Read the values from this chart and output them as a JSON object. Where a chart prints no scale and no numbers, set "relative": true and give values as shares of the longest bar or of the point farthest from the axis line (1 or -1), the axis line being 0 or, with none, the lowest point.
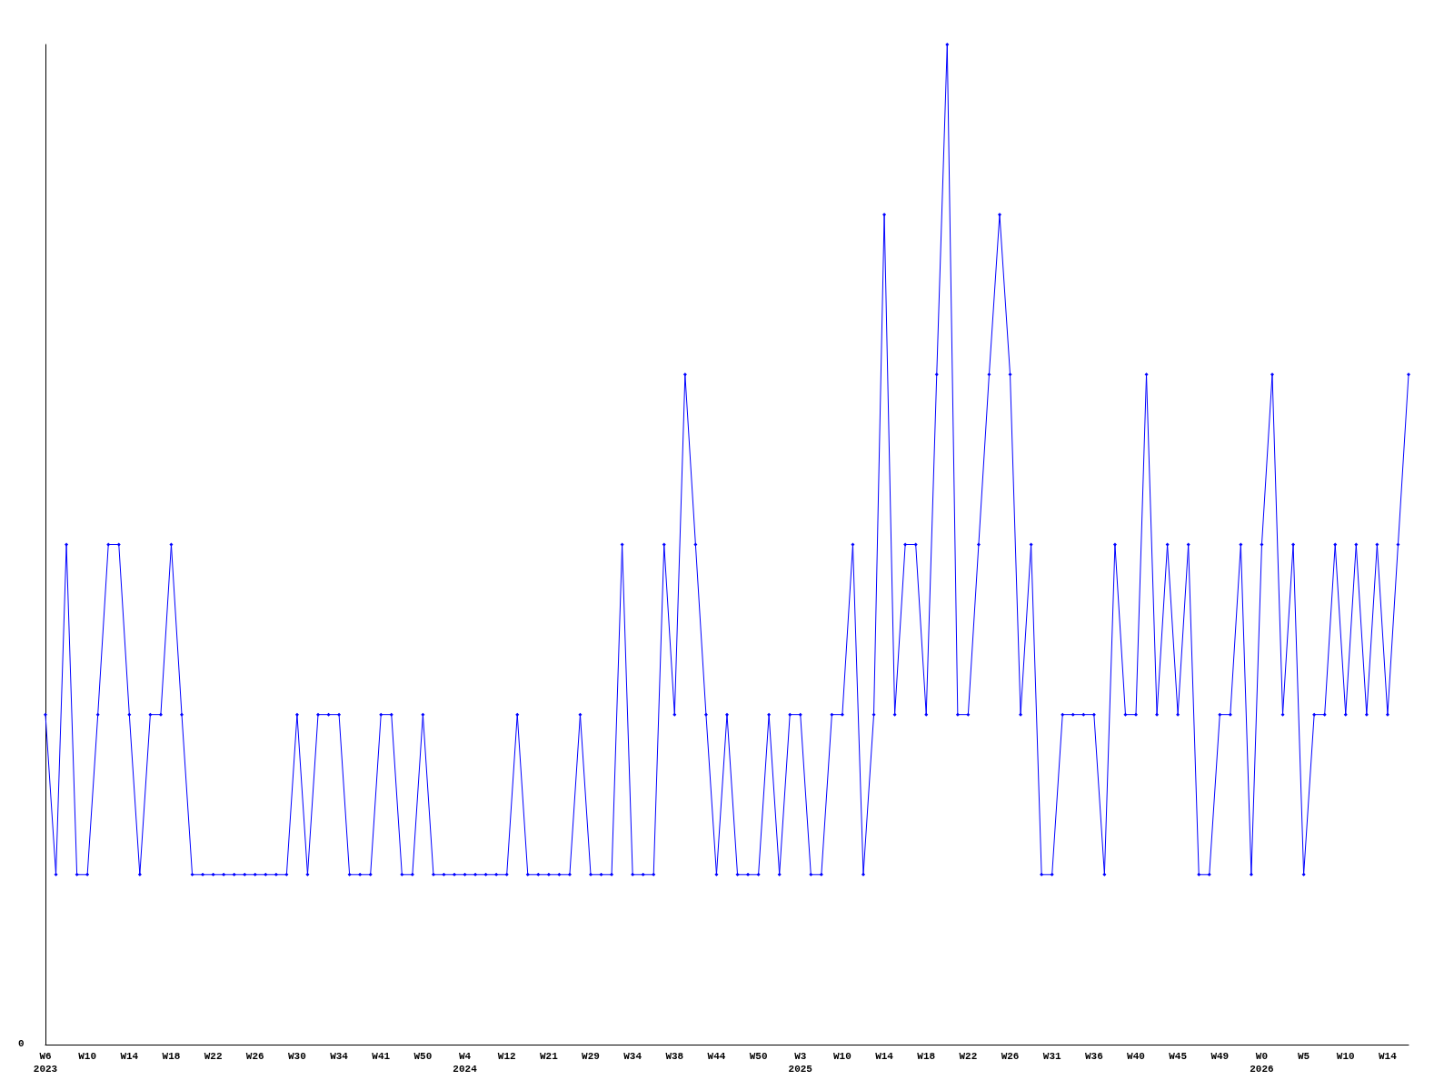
{
  "chart_data": {
    "type": "line",
    "relative": true,
    "color": "#0000ff",
    "marker": "diamond",
    "grid": false,
    "annotations": [
      "0"
    ],
    "categories": [
      "W6\n2023",
      null,
      null,
      null,
      "W10",
      null,
      null,
      null,
      "W14",
      null,
      null,
      null,
      "W18",
      null,
      null,
      null,
      "W22",
      null,
      null,
      null,
      "W26",
      null,
      null,
      null,
      "W30",
      null,
      null,
      null,
      "W34",
      null,
      null,
      null,
      "W41",
      null,
      null,
      null,
      "W50",
      null,
      null,
      null,
      "W4\n2024",
      null,
      null,
      null,
      "W12",
      null,
      null,
      null,
      "W21",
      null,
      null,
      null,
      "W29",
      null,
      null,
      null,
      "W34",
      null,
      null,
      null,
      "W38",
      null,
      null,
      null,
      "W44",
      null,
      null,
      null,
      "W50",
      null,
      null,
      null,
      "W3\n2025",
      null,
      null,
      null,
      "W10",
      null,
      null,
      null,
      "W14",
      null,
      null,
      null,
      "W18",
      null,
      null,
      null,
      "W22",
      null,
      null,
      null,
      "W26",
      null,
      null,
      null,
      "W31",
      null,
      null,
      null,
      "W36",
      null,
      null,
      null,
      "W40",
      null,
      null,
      null,
      "W45",
      null,
      null,
      null,
      "W49",
      null,
      null,
      null,
      "W0\n2026",
      null,
      null,
      null,
      "W5",
      null,
      null,
      null,
      "W10",
      null,
      null,
      null,
      "W14",
      null,
      null
    ],
    "values": [
      0.33,
      0.17,
      0.5,
      0.17,
      0.17,
      0.33,
      0.5,
      0.5,
      0.33,
      0.17,
      0.33,
      0.33,
      0.5,
      0.33,
      0.17,
      0.17,
      0.17,
      0.17,
      0.17,
      0.17,
      0.17,
      0.17,
      0.17,
      0.17,
      0.33,
      0.17,
      0.33,
      0.33,
      0.33,
      0.17,
      0.17,
      0.17,
      0.33,
      0.33,
      0.17,
      0.17,
      0.33,
      0.17,
      0.17,
      0.17,
      0.17,
      0.17,
      0.17,
      0.17,
      0.17,
      0.33,
      0.17,
      0.17,
      0.17,
      0.17,
      0.17,
      0.33,
      0.17,
      0.17,
      0.17,
      0.5,
      0.17,
      0.17,
      0.17,
      0.5,
      0.33,
      0.67,
      0.5,
      0.33,
      0.17,
      0.33,
      0.17,
      0.17,
      0.17,
      0.33,
      0.17,
      0.33,
      0.33,
      0.17,
      0.17,
      0.33,
      0.33,
      0.5,
      0.17,
      0.33,
      0.83,
      0.33,
      0.5,
      0.5,
      0.33,
      0.67,
      1,
      0.33,
      0.33,
      0.5,
      0.67,
      0.83,
      0.67,
      0.33,
      0.5,
      0.17,
      0.17,
      0.33,
      0.33,
      0.33,
      0.33,
      0.17,
      0.5,
      0.33,
      0.33,
      0.67,
      0.33,
      0.5,
      0.33,
      0.5,
      0.17,
      0.17,
      0.33,
      0.33,
      0.5,
      0.17,
      0.5,
      0.67,
      0.33,
      0.5,
      0.17,
      0.33,
      0.33,
      0.5,
      0.33,
      0.5,
      0.33,
      0.5,
      0.33,
      0.5,
      0.67
    ]
  }
}
